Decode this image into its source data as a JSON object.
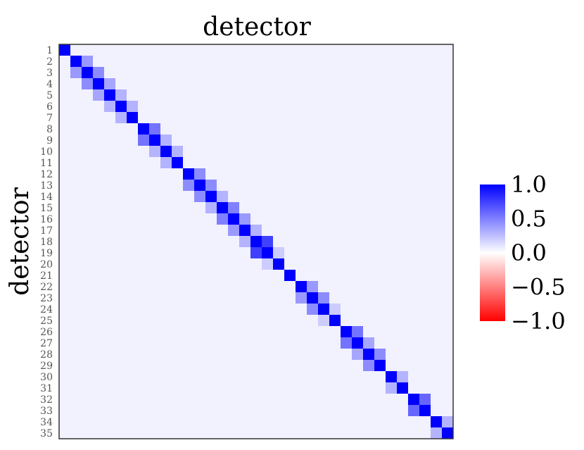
{
  "chart_data": {
    "type": "heatmap",
    "title": "detector",
    "xlabel": "",
    "ylabel": "detector",
    "row_labels": [
      "1",
      "2",
      "3",
      "4",
      "5",
      "6",
      "7",
      "8",
      "9",
      "10",
      "11",
      "12",
      "13",
      "14",
      "15",
      "16",
      "17",
      "18",
      "19",
      "20",
      "21",
      "22",
      "23",
      "24",
      "25",
      "26",
      "27",
      "28",
      "29",
      "30",
      "31",
      "32",
      "33",
      "34",
      "35"
    ],
    "col_labels": [],
    "value_range": [
      -1.0,
      1.0
    ],
    "diagonal_value": 1.0,
    "background_value": 0.05,
    "offdiagonal_pairs": [
      {
        "i": 2,
        "j": 3,
        "value": 0.4
      },
      {
        "i": 3,
        "j": 4,
        "value": 0.45
      },
      {
        "i": 4,
        "j": 5,
        "value": 0.35
      },
      {
        "i": 5,
        "j": 6,
        "value": 0.3
      },
      {
        "i": 6,
        "j": 7,
        "value": 0.3
      },
      {
        "i": 8,
        "j": 9,
        "value": 0.55
      },
      {
        "i": 9,
        "j": 10,
        "value": 0.3
      },
      {
        "i": 10,
        "j": 11,
        "value": 0.3
      },
      {
        "i": 12,
        "j": 13,
        "value": 0.45
      },
      {
        "i": 13,
        "j": 14,
        "value": 0.45
      },
      {
        "i": 14,
        "j": 15,
        "value": 0.3
      },
      {
        "i": 15,
        "j": 16,
        "value": 0.5
      },
      {
        "i": 16,
        "j": 17,
        "value": 0.4
      },
      {
        "i": 17,
        "j": 18,
        "value": 0.3
      },
      {
        "i": 18,
        "j": 19,
        "value": 0.75
      },
      {
        "i": 19,
        "j": 20,
        "value": 0.2
      },
      {
        "i": 22,
        "j": 23,
        "value": 0.4
      },
      {
        "i": 23,
        "j": 24,
        "value": 0.45
      },
      {
        "i": 24,
        "j": 25,
        "value": 0.2
      },
      {
        "i": 26,
        "j": 27,
        "value": 0.55
      },
      {
        "i": 27,
        "j": 28,
        "value": 0.35
      },
      {
        "i": 28,
        "j": 29,
        "value": 0.45
      },
      {
        "i": 30,
        "j": 31,
        "value": 0.3
      },
      {
        "i": 32,
        "j": 33,
        "value": 0.6
      },
      {
        "i": 34,
        "j": 35,
        "value": 0.3
      }
    ],
    "colorbar": {
      "ticks": [
        "1.0",
        "0.5",
        "0.0",
        "−0.5",
        "−1.0"
      ],
      "tick_values": [
        1.0,
        0.5,
        0.0,
        -0.5,
        -1.0
      ],
      "color_max": "#0000ff",
      "color_mid": "#ffffff",
      "color_min": "#ff0000"
    }
  }
}
